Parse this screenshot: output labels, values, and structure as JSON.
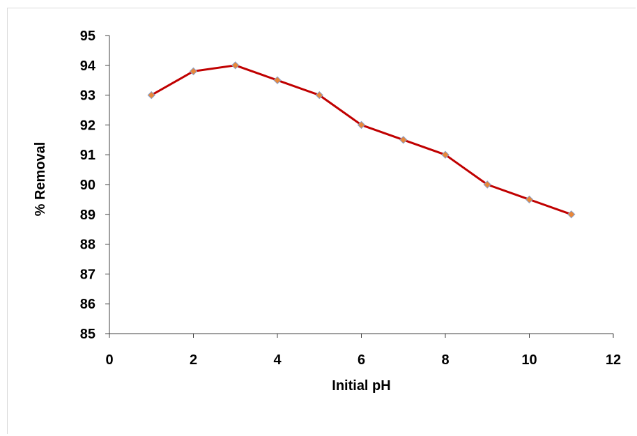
{
  "chart_data": {
    "type": "line",
    "title": "",
    "xlabel": "Initial pH",
    "ylabel": "% Removal",
    "xlim": [
      0,
      12
    ],
    "ylim": [
      85,
      95
    ],
    "xticks": [
      0,
      2,
      4,
      6,
      8,
      10,
      12
    ],
    "yticks": [
      85,
      86,
      87,
      88,
      89,
      90,
      91,
      92,
      93,
      94,
      95
    ],
    "grid": false,
    "legend": "none",
    "series": [
      {
        "x": [
          1,
          2,
          3,
          4,
          5,
          6,
          7,
          8,
          9,
          10,
          11
        ],
        "y": [
          93,
          93.8,
          94,
          93.5,
          93,
          92,
          91.5,
          91,
          90,
          89.5,
          89
        ],
        "line_color": "#c00000",
        "marker": "diamond",
        "marker_color": "#e8883a"
      }
    ]
  }
}
